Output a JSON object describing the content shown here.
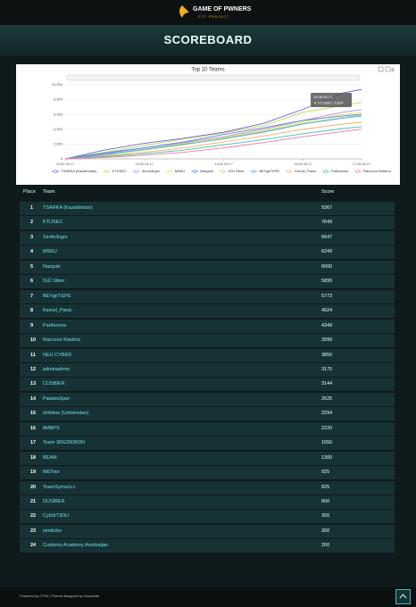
{
  "header": {
    "logo_title": "GAME OF PWNERS",
    "logo_subtitle": "CTF PROJECT"
  },
  "banner": {
    "title": "SCOREBOARD"
  },
  "chart_data": {
    "type": "line",
    "title": "Top 10 Teams",
    "x": [
      10,
      11,
      12,
      13,
      14,
      15,
      16,
      17,
      17.47
    ],
    "xlim": [
      10,
      17.47
    ],
    "xticks": [
      {
        "value": 10,
        "label": "10:00 05-17"
      },
      {
        "value": 12,
        "label": "12:00 05-17"
      },
      {
        "value": 14,
        "label": "14:00 05-17"
      },
      {
        "value": 16,
        "label": "16:00 05-17"
      },
      {
        "value": 17.47,
        "label": "17:28 05-17"
      }
    ],
    "ylim": [
      0,
      10000
    ],
    "yticks": [
      0,
      {
        "value": 2000,
        "label": "2,000"
      },
      {
        "value": 4000,
        "label": "4,000"
      },
      {
        "value": 6000,
        "label": "6,000"
      },
      {
        "value": 8000,
        "label": "8,000"
      },
      {
        "value": 10000,
        "label": "10,000"
      }
    ],
    "grid": true,
    "tooltip": {
      "title": "16:08 05-17",
      "text": "KTUSEC: 6,624"
    },
    "series": [
      {
        "name": "TSARKA (Kazakhstan)",
        "color": "#6f5fe0",
        "values": [
          0,
          1200,
          2100,
          2800,
          3600,
          4800,
          6700,
          8900,
          9367
        ]
      },
      {
        "name": "KTUSEC",
        "color": "#b9d94a",
        "values": [
          0,
          900,
          1800,
          2700,
          3500,
          4500,
          6300,
          7200,
          7649
        ]
      },
      {
        "name": "Sin4n3ngin",
        "color": "#b58cf0",
        "values": [
          0,
          700,
          1500,
          2200,
          3000,
          4000,
          5200,
          6300,
          6647
        ]
      },
      {
        "name": "MSKU",
        "color": "#f0e04a",
        "values": [
          0,
          600,
          1300,
          2100,
          2900,
          3800,
          5000,
          6000,
          6249
        ]
      },
      {
        "name": "Nazguls",
        "color": "#5a7de0",
        "values": [
          0,
          800,
          1500,
          2300,
          3300,
          4200,
          5200,
          5800,
          6000
        ]
      },
      {
        "name": "İGÜ Siber",
        "color": "#9ee08a",
        "values": [
          0,
          500,
          1200,
          1900,
          2800,
          3700,
          4800,
          5600,
          5899
        ]
      },
      {
        "name": "BEYgirTEPE",
        "color": "#4aa8e8",
        "values": [
          0,
          600,
          1300,
          2000,
          2700,
          3600,
          4700,
          5500,
          5773
        ]
      },
      {
        "name": "Kernel_Panic",
        "color": "#f0b060",
        "values": [
          0,
          400,
          900,
          1500,
          2300,
          3100,
          4000,
          4700,
          4924
        ]
      },
      {
        "name": "Parthenios",
        "color": "#3fbfb0",
        "values": [
          0,
          300,
          700,
          1200,
          1900,
          2600,
          3400,
          4100,
          4349
        ]
      },
      {
        "name": "Raccoon Raiders",
        "color": "#f07aa0",
        "values": [
          0,
          200,
          500,
          900,
          1500,
          2200,
          3000,
          3700,
          3999
        ]
      }
    ]
  },
  "table": {
    "columns": [
      "Place",
      "Team",
      "Score"
    ],
    "rows": [
      [
        1,
        "TSARKA (Kazakhstan)",
        9367
      ],
      [
        2,
        "KTUSEC",
        7649
      ],
      [
        3,
        "Sin4n3ngin",
        6647
      ],
      [
        4,
        "MSKU",
        6249
      ],
      [
        5,
        "Nazguls",
        6000
      ],
      [
        6,
        "İGÜ Siber",
        5899
      ],
      [
        7,
        "BEYgirTEPE",
        5773
      ],
      [
        8,
        "Kernel_Panic",
        4924
      ],
      [
        9,
        "Parthenios",
        4349
      ],
      [
        10,
        "Raccoon Raiders",
        3999
      ],
      [
        11,
        "NEU CYBER",
        3850
      ],
      [
        12,
        "adminadmin",
        3175
      ],
      [
        13,
        "CÜSBİER",
        3144
      ],
      [
        14,
        "PatatesSpor",
        2625
      ],
      [
        15,
        "sh4dow (Uzbekistan)",
        2294
      ],
      [
        16,
        "8MBPS",
        2220
      ],
      [
        17,
        "Team 3RG3N3K0N",
        1650
      ],
      [
        18,
        "BEAM",
        1300
      ],
      [
        19,
        "METoor",
        925
      ],
      [
        20,
        "TeamSyrna1x.l",
        825
      ],
      [
        21,
        "DÜSİBER",
        600
      ],
      [
        22,
        "Cyb3rT3DU",
        300
      ],
      [
        23,
        "simitciler",
        300
      ],
      [
        24,
        "Customs Academy Azerbaijan",
        200
      ]
    ]
  },
  "footer": {
    "text": "Powered by CTFd | Theme designed by Hackinlab"
  }
}
